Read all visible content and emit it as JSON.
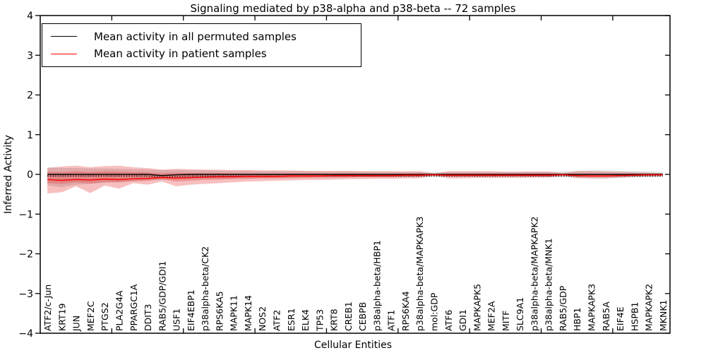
{
  "chart_data": {
    "type": "line",
    "title": "Signaling mediated by p38-alpha and p38-beta -- 72 samples",
    "xlabel": "Cellular Entities",
    "ylabel": "Inferred Activity",
    "ylim": [
      -4,
      4
    ],
    "yticks": [
      -4,
      -3,
      -2,
      -1,
      0,
      1,
      2,
      3,
      4
    ],
    "x_major_ticks": [
      5,
      10,
      15,
      20,
      25,
      30,
      35,
      40
    ],
    "grid": false,
    "legend": {
      "position": "upper left",
      "entries": [
        {
          "label": "Mean activity in all permuted samples",
          "color": "#000000"
        },
        {
          "label": "Mean activity in patient samples",
          "color": "#ff0000"
        }
      ]
    },
    "entities": [
      "ATF2/c-Jun",
      "KRT19",
      "JUN",
      "MEF2C",
      "PTGS2",
      "PLA2G4A",
      "PPARGC1A",
      "DDIT3",
      "RAB5/GDP/GDI1",
      "USF1",
      "EIF4EBP1",
      "p38alpha-beta/CK2",
      "RPS6KA5",
      "MAPK11",
      "MAPK14",
      "NOS2",
      "ATF2",
      "ESR1",
      "ELK4",
      "TP53",
      "KRT8",
      "CREB1",
      "CEBPB",
      "p38alpha-beta/HBP1",
      "ATF1",
      "RPS6KA4",
      "p38alpha-beta/MAPKAPK3",
      "mol:GDP",
      "ATF6",
      "GDI1",
      "MAPKAPK5",
      "MEF2A",
      "MITF",
      "SLC9A1",
      "p38alpha-beta/MAPKAPK2",
      "p38alpha-beta/MNK1",
      "RAB5/GDP",
      "HBP1",
      "MAPKAPK3",
      "RAB5A",
      "EIF4E",
      "HSPB1",
      "MAPKAPK2",
      "MKNK1"
    ],
    "series": [
      {
        "name": "Mean activity in all permuted samples",
        "color": "#000000",
        "dotted_offset": true,
        "values": [
          0,
          0,
          0,
          0,
          0,
          0,
          0,
          0,
          -0.03,
          -0.01,
          0,
          0,
          0,
          0,
          0,
          0,
          0,
          0,
          0,
          0,
          0,
          0,
          0,
          0,
          0,
          0,
          0,
          0,
          0,
          0,
          0,
          0,
          0,
          0,
          0,
          0,
          0,
          0,
          0,
          0,
          0,
          0,
          0,
          0
        ]
      },
      {
        "name": "Mean activity in patient samples",
        "color": "#ff0000",
        "dotted_offset": false,
        "values": [
          -0.13,
          -0.15,
          -0.13,
          -0.14,
          -0.12,
          -0.13,
          -0.11,
          -0.1,
          -0.08,
          -0.09,
          -0.08,
          -0.07,
          -0.06,
          -0.06,
          -0.05,
          -0.05,
          -0.05,
          -0.04,
          -0.04,
          -0.04,
          -0.03,
          -0.03,
          -0.03,
          -0.03,
          -0.03,
          -0.02,
          -0.02,
          -0.01,
          -0.02,
          -0.02,
          -0.02,
          -0.02,
          -0.02,
          -0.02,
          -0.02,
          -0.02,
          -0.01,
          -0.03,
          -0.04,
          -0.04,
          -0.03,
          -0.02,
          -0.01,
          -0.01
        ]
      }
    ],
    "bands": [
      {
        "name": "permuted-range",
        "color": "#8c8c8c",
        "opacity": 0.28,
        "upper": [
          0.18,
          0.16,
          0.16,
          0.15,
          0.15,
          0.14,
          0.13,
          0.12,
          0.11,
          0.11,
          0.1,
          0.1,
          0.09,
          0.09,
          0.09,
          0.08,
          0.08,
          0.08,
          0.08,
          0.07,
          0.07,
          0.07,
          0.07,
          0.07,
          0.06,
          0.06,
          0.06,
          0.06,
          0.06,
          0.06,
          0.06,
          0.06,
          0.06,
          0.06,
          0.07,
          0.07,
          0.07,
          0.09,
          0.1,
          0.1,
          0.09,
          0.08,
          0.07,
          0.06
        ],
        "lower": [
          -0.28,
          -0.32,
          -0.26,
          -0.24,
          -0.21,
          -0.19,
          -0.17,
          -0.15,
          -0.14,
          -0.13,
          -0.12,
          -0.11,
          -0.11,
          -0.1,
          -0.1,
          -0.09,
          -0.09,
          -0.09,
          -0.08,
          -0.08,
          -0.08,
          -0.07,
          -0.07,
          -0.07,
          -0.07,
          -0.07,
          -0.06,
          -0.06,
          -0.06,
          -0.06,
          -0.06,
          -0.06,
          -0.06,
          -0.06,
          -0.07,
          -0.07,
          -0.07,
          -0.09,
          -0.1,
          -0.1,
          -0.09,
          -0.08,
          -0.07,
          -0.06
        ]
      },
      {
        "name": "patient-range-outer",
        "color": "#e62e2e",
        "opacity": 0.3,
        "upper": [
          0.16,
          0.2,
          0.22,
          0.18,
          0.21,
          0.22,
          0.18,
          0.16,
          0.12,
          0.14,
          0.13,
          0.12,
          0.12,
          0.11,
          0.11,
          0.1,
          0.1,
          0.1,
          0.09,
          0.09,
          0.09,
          0.09,
          0.08,
          0.08,
          0.08,
          0.08,
          0.08,
          0.02,
          0.08,
          0.08,
          0.08,
          0.08,
          0.07,
          0.07,
          0.07,
          0.07,
          0.03,
          0.08,
          0.08,
          0.07,
          0.06,
          0.05,
          0.04,
          0.03
        ],
        "lower": [
          -0.48,
          -0.45,
          -0.3,
          -0.47,
          -0.28,
          -0.36,
          -0.22,
          -0.26,
          -0.18,
          -0.3,
          -0.26,
          -0.24,
          -0.22,
          -0.2,
          -0.18,
          -0.17,
          -0.16,
          -0.15,
          -0.14,
          -0.14,
          -0.13,
          -0.12,
          -0.12,
          -0.11,
          -0.11,
          -0.1,
          -0.1,
          -0.03,
          -0.1,
          -0.1,
          -0.09,
          -0.09,
          -0.09,
          -0.09,
          -0.08,
          -0.08,
          -0.03,
          -0.09,
          -0.1,
          -0.1,
          -0.08,
          -0.06,
          -0.05,
          -0.04
        ]
      },
      {
        "name": "patient-range-inner",
        "color": "#e62e2e",
        "opacity": 0.3,
        "upper": [
          0.07,
          0.06,
          0.08,
          0.06,
          0.08,
          0.07,
          0.06,
          0.05,
          0.03,
          0.04,
          0.03,
          0.03,
          0.03,
          0.02,
          0.02,
          0.02,
          0.02,
          0.02,
          0.02,
          0.02,
          0.02,
          0.02,
          0.02,
          0.01,
          0.01,
          0.01,
          0.01,
          0.0,
          0.01,
          0.01,
          0.01,
          0.01,
          0.01,
          0.01,
          0.01,
          0.01,
          0.0,
          0.01,
          0.01,
          0.01,
          0.01,
          0.01,
          0.0,
          0.0
        ],
        "lower": [
          -0.22,
          -0.24,
          -0.2,
          -0.23,
          -0.19,
          -0.2,
          -0.17,
          -0.16,
          -0.12,
          -0.18,
          -0.16,
          -0.14,
          -0.13,
          -0.12,
          -0.11,
          -0.1,
          -0.1,
          -0.09,
          -0.09,
          -0.08,
          -0.08,
          -0.08,
          -0.07,
          -0.07,
          -0.07,
          -0.06,
          -0.06,
          -0.01,
          -0.06,
          -0.06,
          -0.06,
          -0.06,
          -0.05,
          -0.05,
          -0.05,
          -0.05,
          -0.01,
          -0.06,
          -0.06,
          -0.06,
          -0.05,
          -0.04,
          -0.03,
          -0.02
        ]
      }
    ]
  },
  "colors": {
    "axis": "#000000",
    "background": "#ffffff",
    "permuted_line": "#000000",
    "patient_line": "#ff0000",
    "patient_band": "#e62e2e",
    "permuted_band": "#8c8c8c"
  }
}
